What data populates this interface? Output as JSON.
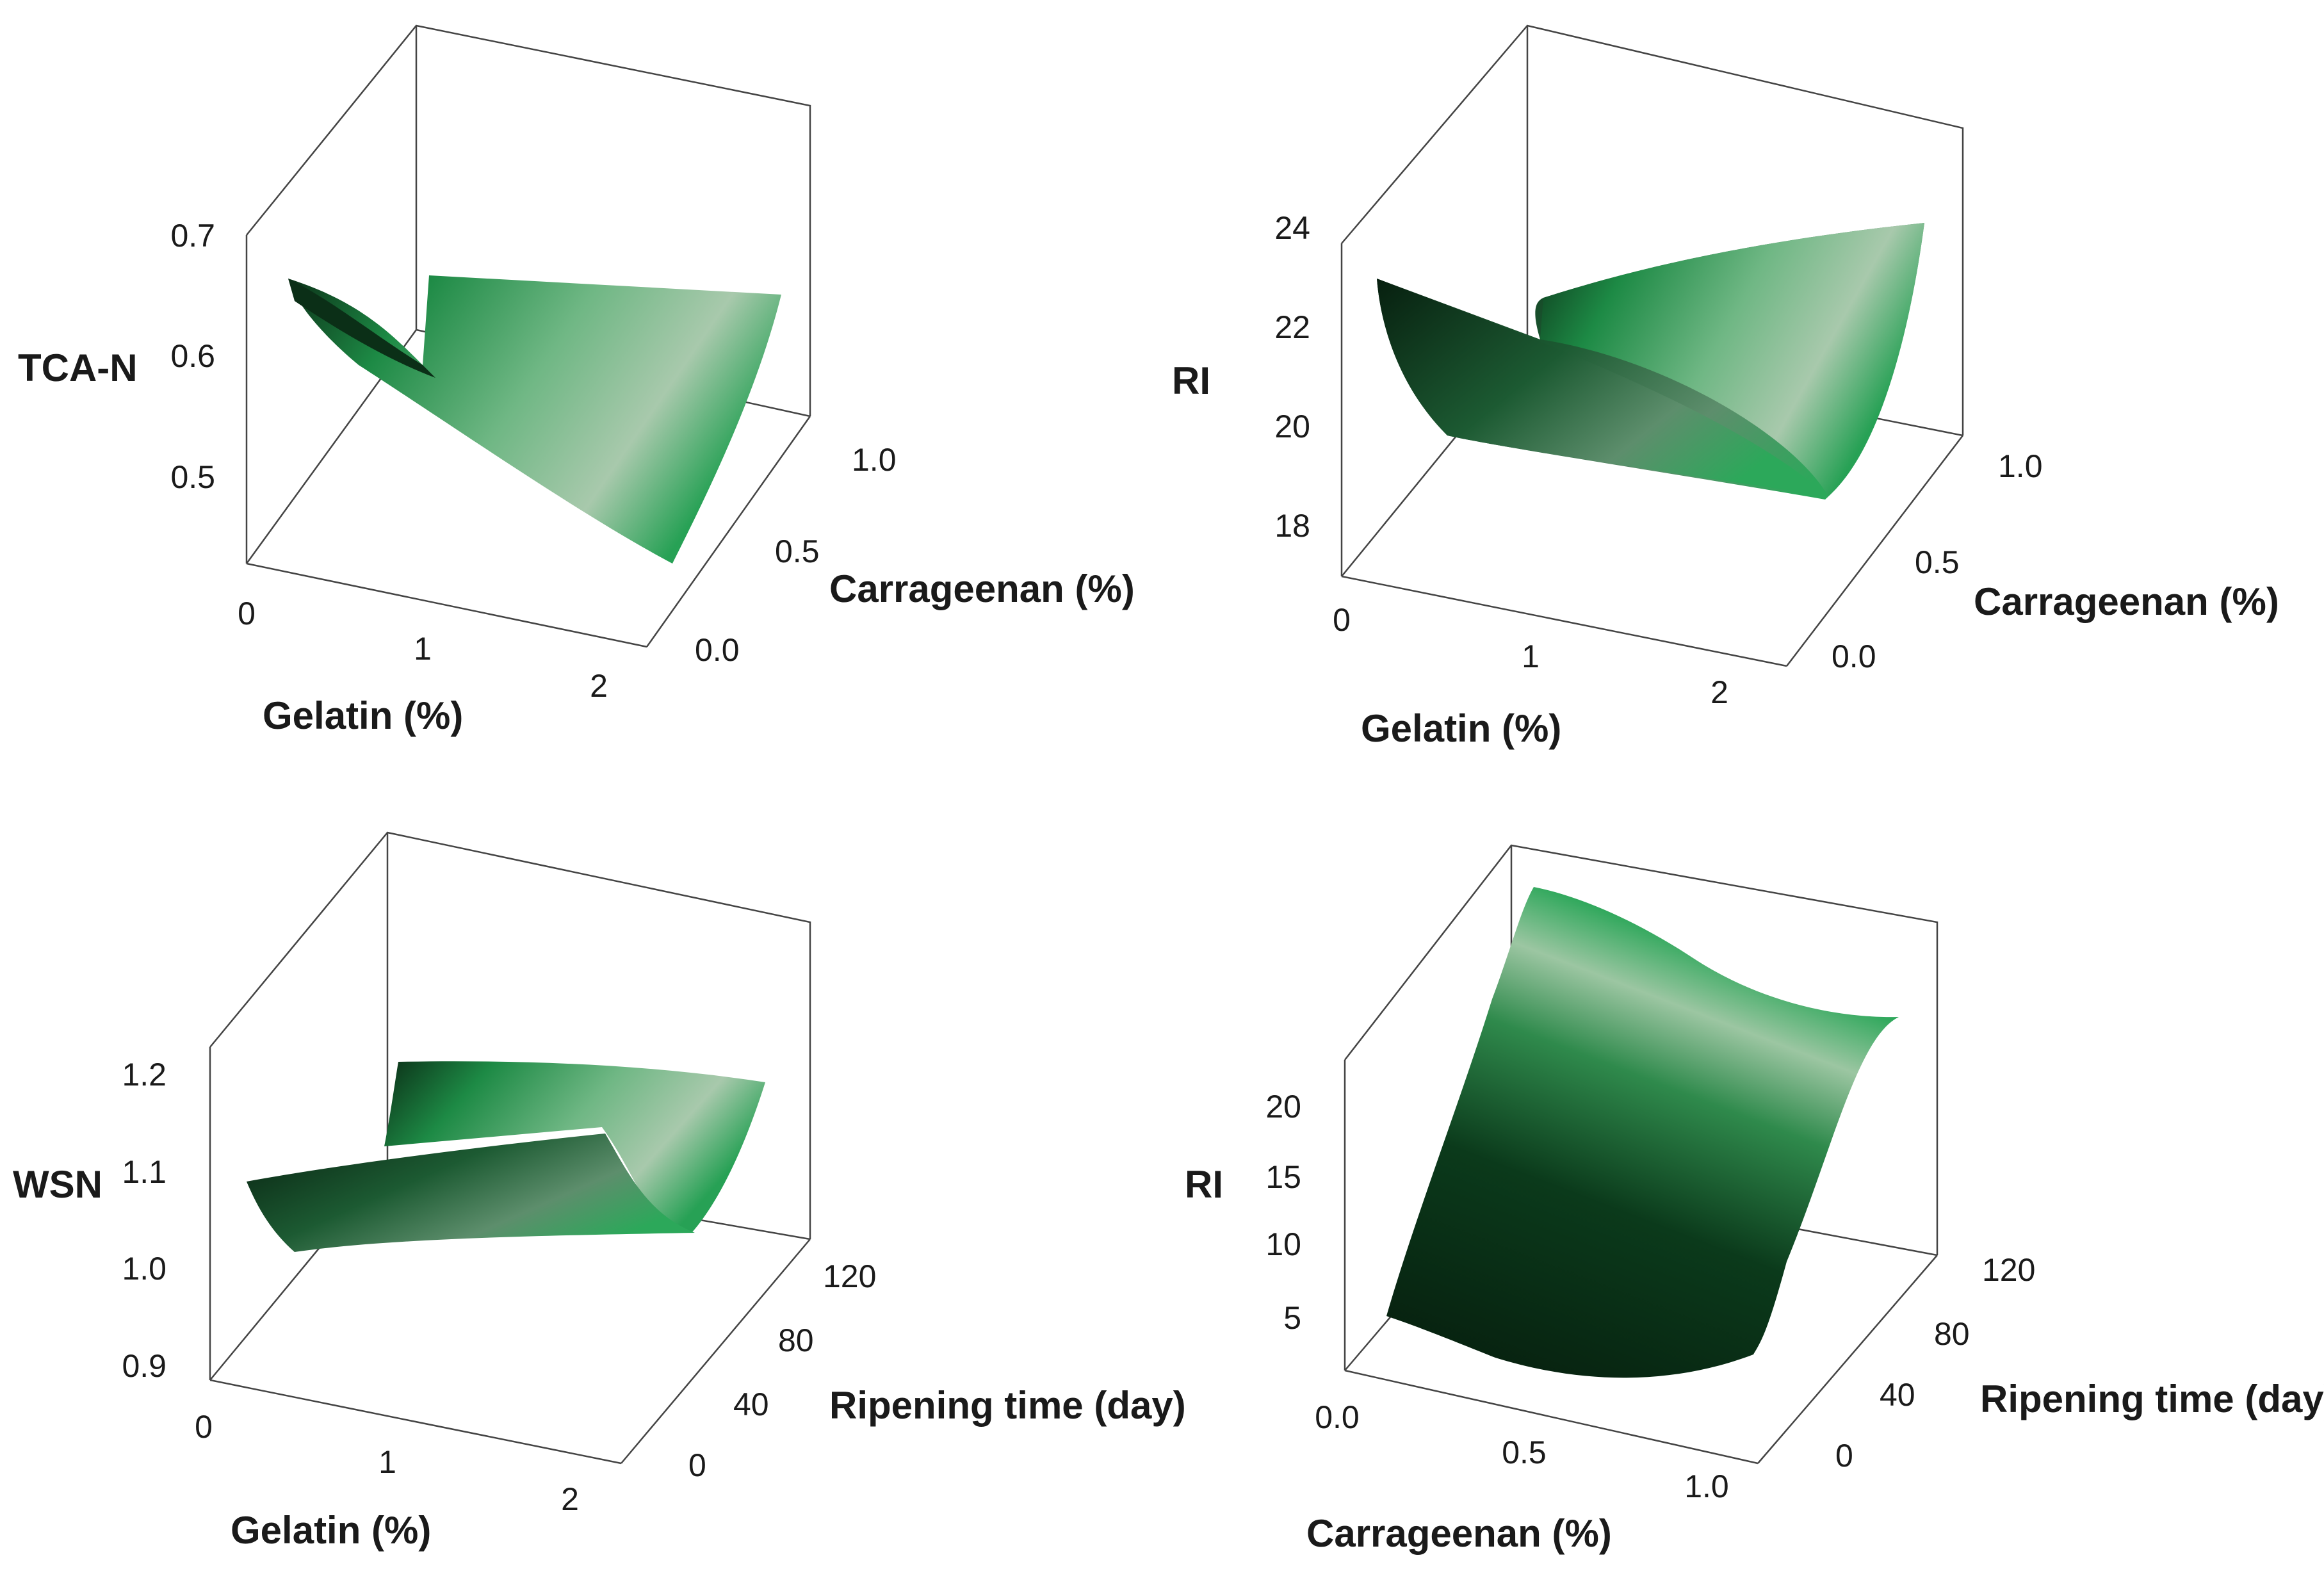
{
  "colors": {
    "surface_dark": "#0b2f17",
    "surface_mid": "#11803a",
    "surface_light": "#a4c8a8",
    "frame": "#444444"
  },
  "chart_data": [
    {
      "type": "surface",
      "zlabel": "TCA-N",
      "xlabel": "Gelatin (%)",
      "ylabel": "Carrageenan (%)",
      "x_ticks": [
        "0",
        "1",
        "2"
      ],
      "y_ticks": [
        "0.0",
        "0.5",
        "1.0"
      ],
      "z_ticks": [
        "0.5",
        "0.6",
        "0.7"
      ],
      "xlim": [
        0,
        2
      ],
      "ylim": [
        0,
        1
      ],
      "zlim": [
        0.45,
        0.72
      ],
      "corners": [
        {
          "x": 0,
          "y": 0,
          "z": 0.67
        },
        {
          "x": 0,
          "y": 1,
          "z": 0.56
        },
        {
          "x": 2,
          "y": 1,
          "z": 0.7
        },
        {
          "x": 2,
          "y": 0,
          "z": 0.46
        }
      ]
    },
    {
      "type": "surface",
      "zlabel": "RI",
      "xlabel": "Gelatin (%)",
      "ylabel": "Carrageenan (%)",
      "x_ticks": [
        "0",
        "1",
        "2"
      ],
      "y_ticks": [
        "0.0",
        "0.5",
        "1.0"
      ],
      "z_ticks": [
        "18",
        "20",
        "22",
        "24"
      ],
      "xlim": [
        0,
        2
      ],
      "ylim": [
        0,
        1
      ],
      "zlim": [
        17.5,
        24
      ],
      "corners": [
        {
          "x": 0,
          "y": 0,
          "z": 23.2
        },
        {
          "x": 0,
          "y": 1,
          "z": 19.2
        },
        {
          "x": 2,
          "y": 1,
          "z": 24.0
        },
        {
          "x": 2,
          "y": 0,
          "z": 18.6
        }
      ]
    },
    {
      "type": "surface",
      "zlabel": "WSN",
      "xlabel": "Gelatin (%)",
      "ylabel": "Ripening time (day)",
      "x_ticks": [
        "0",
        "1",
        "2"
      ],
      "y_ticks": [
        "0",
        "40",
        "80",
        "120"
      ],
      "z_ticks": [
        "0.9",
        "1.0",
        "1.1",
        "1.2"
      ],
      "xlim": [
        0,
        2
      ],
      "ylim": [
        0,
        120
      ],
      "zlim": [
        0.88,
        1.22
      ],
      "corners": [
        {
          "x": 0,
          "y": 0,
          "z": 1.09
        },
        {
          "x": 0,
          "y": 120,
          "z": 1.08
        },
        {
          "x": 2,
          "y": 120,
          "z": 1.2
        },
        {
          "x": 2,
          "y": 0,
          "z": 1.08
        }
      ]
    },
    {
      "type": "surface",
      "zlabel": "RI",
      "xlabel": "Carrageenan (%)",
      "ylabel": "Ripening time (day)",
      "x_ticks": [
        "0.0",
        "0.5",
        "1.0"
      ],
      "y_ticks": [
        "0",
        "40",
        "80",
        "120"
      ],
      "z_ticks": [
        "5",
        "10",
        "15",
        "20"
      ],
      "xlim": [
        0,
        1
      ],
      "ylim": [
        0,
        120
      ],
      "zlim": [
        0,
        24
      ],
      "corners": [
        {
          "x": 0,
          "y": 0,
          "z": 4.5
        },
        {
          "x": 0,
          "y": 120,
          "z": 24.0
        },
        {
          "x": 1,
          "y": 120,
          "z": 23.5
        },
        {
          "x": 1,
          "y": 0,
          "z": 3.5
        }
      ]
    }
  ]
}
